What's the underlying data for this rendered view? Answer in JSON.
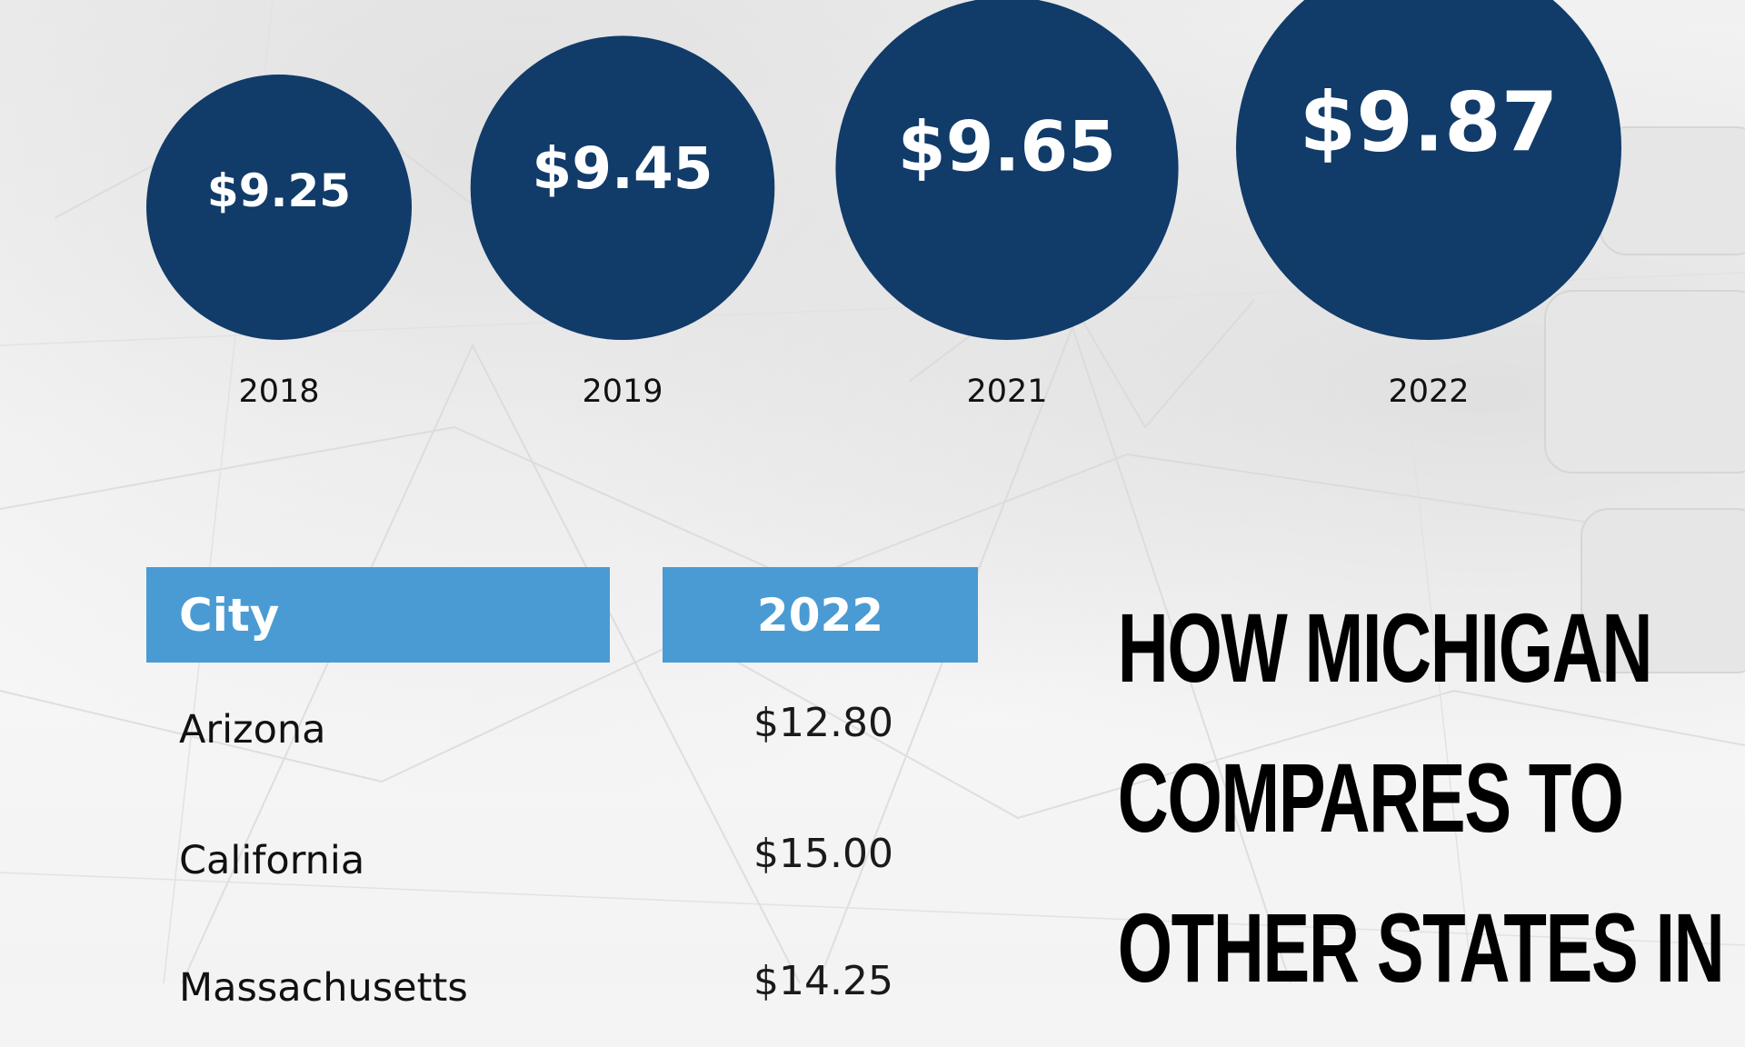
{
  "chart_data": [
    {
      "type": "bubble",
      "title": "",
      "categories": [
        "2018",
        "2019",
        "2021",
        "2022"
      ],
      "values": [
        9.25,
        9.45,
        9.65,
        9.87
      ],
      "value_labels": [
        "$9.25",
        "$9.45",
        "$9.65",
        "$9.87"
      ],
      "bubble_color": "#113b69",
      "label_color": "#ffffff"
    },
    {
      "type": "table",
      "columns": [
        "City",
        "2022"
      ],
      "rows": [
        [
          "Arizona",
          "$12.80"
        ],
        [
          "California",
          "$15.00"
        ],
        [
          "Massachusetts",
          "$14.25"
        ]
      ],
      "header_color": "#4a9bd3"
    }
  ],
  "headline": {
    "lines": [
      "HOW MICHIGAN",
      "COMPARES TO",
      "OTHER STATES IN"
    ]
  }
}
